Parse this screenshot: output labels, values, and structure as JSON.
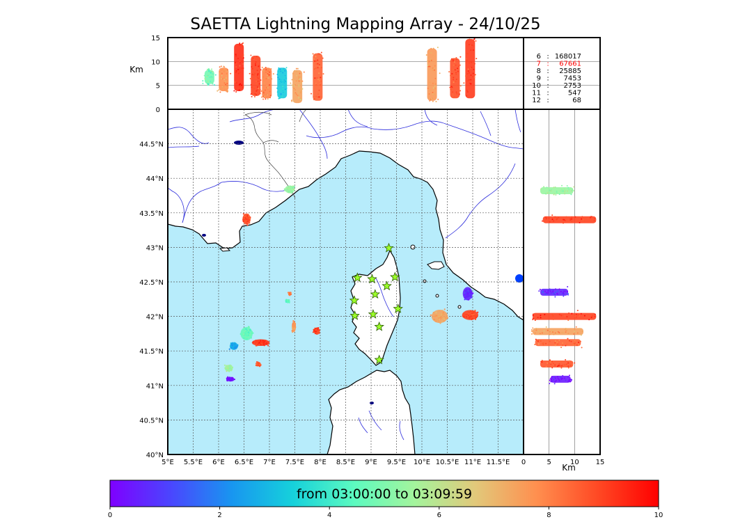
{
  "title": "SAETTA Lightning Mapping Array - 24/10/25",
  "colors": {
    "sea": "#b7ecfb",
    "land": "#ffffff",
    "coast": "#000000",
    "rivers": "#2b2bdc",
    "borders": "#444444",
    "grid": "#555555",
    "station_fill": "#9cff2a",
    "station_stroke": "#2a5a00",
    "highlight_text": "#ff0000"
  },
  "altitude_panel": {
    "ylabel": "Km",
    "yticks": [
      "15",
      "10",
      "5",
      "0"
    ],
    "reflines_km": [
      10,
      5
    ]
  },
  "side_panel": {
    "xlabel": "Km",
    "xticks": [
      "0",
      "5",
      "10",
      "15"
    ]
  },
  "station_counts": [
    {
      "stations": "6",
      "count": "168017",
      "highlight": false
    },
    {
      "stations": "7",
      "count": "67661",
      "highlight": true
    },
    {
      "stations": "8",
      "count": "25885",
      "highlight": false
    },
    {
      "stations": "9",
      "count": "7453",
      "highlight": false
    },
    {
      "stations": "10",
      "count": "2753",
      "highlight": false
    },
    {
      "stations": "11",
      "count": "547",
      "highlight": false
    },
    {
      "stations": "12",
      "count": "68",
      "highlight": false
    }
  ],
  "map": {
    "lon_range": [
      5,
      12
    ],
    "lat_range": [
      40,
      45
    ],
    "lon_ticks": [
      "5°E",
      "5.5°E",
      "6°E",
      "6.5°E",
      "7°E",
      "7.5°E",
      "8°E",
      "8.5°E",
      "9°E",
      "9.5°E",
      "10°E",
      "10.5°E",
      "11°E",
      "11.5°E"
    ],
    "lat_ticks": [
      "44.5°N",
      "44°N",
      "43.5°N",
      "43°N",
      "42.5°N",
      "42°N",
      "41.5°N",
      "41°N",
      "40.5°N",
      "40°N"
    ]
  },
  "colorbar": {
    "label": "from 03:00:00 to 03:09:59",
    "range_min": 0,
    "range_max": 10,
    "ticks": [
      "0",
      "2",
      "4",
      "6",
      "8",
      "10"
    ],
    "stops": [
      "#7f00ff",
      "#4a46fe",
      "#1896f0",
      "#16d1db",
      "#5cfac0",
      "#a4f49c",
      "#e2c87a",
      "#ff8f4f",
      "#ff4924",
      "#ff0000"
    ]
  },
  "stations": [
    {
      "lon": 9.35,
      "lat": 42.99
    },
    {
      "lon": 8.73,
      "lat": 42.56
    },
    {
      "lon": 9.02,
      "lat": 42.54
    },
    {
      "lon": 9.47,
      "lat": 42.57
    },
    {
      "lon": 9.31,
      "lat": 42.44
    },
    {
      "lon": 9.08,
      "lat": 42.32
    },
    {
      "lon": 8.67,
      "lat": 42.23
    },
    {
      "lon": 9.53,
      "lat": 42.11
    },
    {
      "lon": 9.04,
      "lat": 42.03
    },
    {
      "lon": 8.68,
      "lat": 42.01
    },
    {
      "lon": 9.16,
      "lat": 41.85
    },
    {
      "lon": 9.16,
      "lat": 41.37
    }
  ],
  "storm_cells": [
    {
      "lon": 6.55,
      "lat": 43.41,
      "rx": 0.1,
      "ry": 0.1,
      "t": 8.8
    },
    {
      "lon": 7.4,
      "lat": 43.84,
      "rx": 0.12,
      "ry": 0.07,
      "t": 5.4
    },
    {
      "lon": 10.35,
      "lat": 42.0,
      "rx": 0.2,
      "ry": 0.12,
      "t": 7.4
    },
    {
      "lon": 10.95,
      "lat": 42.02,
      "rx": 0.2,
      "ry": 0.09,
      "t": 9.0
    },
    {
      "lon": 10.9,
      "lat": 42.33,
      "rx": 0.12,
      "ry": 0.12,
      "t": 0.6
    },
    {
      "lon": 6.83,
      "lat": 41.62,
      "rx": 0.22,
      "ry": 0.06,
      "t": 9.2
    },
    {
      "lon": 6.55,
      "lat": 41.75,
      "rx": 0.15,
      "ry": 0.12,
      "t": 4.6
    },
    {
      "lon": 7.93,
      "lat": 41.79,
      "rx": 0.08,
      "ry": 0.06,
      "t": 9.0
    },
    {
      "lon": 7.48,
      "lat": 41.85,
      "rx": 0.05,
      "ry": 0.1,
      "t": 7.6
    },
    {
      "lon": 6.3,
      "lat": 41.57,
      "rx": 0.1,
      "ry": 0.07,
      "t": 2.5
    },
    {
      "lon": 6.78,
      "lat": 41.31,
      "rx": 0.06,
      "ry": 0.04,
      "t": 8.7
    },
    {
      "lon": 6.2,
      "lat": 41.25,
      "rx": 0.1,
      "ry": 0.06,
      "t": 5.5
    },
    {
      "lon": 6.23,
      "lat": 41.09,
      "rx": 0.1,
      "ry": 0.04,
      "t": 0.3
    },
    {
      "lon": 7.4,
      "lat": 42.33,
      "rx": 0.04,
      "ry": 0.03,
      "t": 8.0
    },
    {
      "lon": 7.35,
      "lat": 42.22,
      "rx": 0.05,
      "ry": 0.03,
      "t": 4.5
    }
  ],
  "altitude_cells": [
    {
      "lon": 5.82,
      "lo_km": 5.0,
      "hi_km": 8.5,
      "t": 4.8
    },
    {
      "lon": 6.1,
      "lo_km": 3.5,
      "hi_km": 9.0,
      "t": 7.8
    },
    {
      "lon": 6.4,
      "lo_km": 3.5,
      "hi_km": 14.0,
      "t": 9.3
    },
    {
      "lon": 6.73,
      "lo_km": 2.5,
      "hi_km": 11.5,
      "t": 9.0
    },
    {
      "lon": 6.95,
      "lo_km": 2.0,
      "hi_km": 9.0,
      "t": 8.0
    },
    {
      "lon": 7.25,
      "lo_km": 2.0,
      "hi_km": 9.0,
      "t": 3.2
    },
    {
      "lon": 7.55,
      "lo_km": 1.0,
      "hi_km": 8.5,
      "t": 7.4
    },
    {
      "lon": 7.95,
      "lo_km": 1.5,
      "hi_km": 12.0,
      "t": 8.5
    },
    {
      "lon": 10.2,
      "lo_km": 1.5,
      "hi_km": 13.0,
      "t": 7.6
    },
    {
      "lon": 10.65,
      "lo_km": 2.0,
      "hi_km": 11.0,
      "t": 8.8
    },
    {
      "lon": 10.95,
      "lo_km": 2.0,
      "hi_km": 15.0,
      "t": 9.1
    }
  ],
  "side_cells": [
    {
      "lat": 43.82,
      "lo_km": 3.0,
      "hi_km": 10.0,
      "t": 5.4
    },
    {
      "lat": 43.4,
      "lo_km": 3.5,
      "hi_km": 14.5,
      "t": 9.0
    },
    {
      "lat": 42.35,
      "lo_km": 3.0,
      "hi_km": 9.0,
      "t": 0.6
    },
    {
      "lat": 42.0,
      "lo_km": 1.5,
      "hi_km": 14.5,
      "t": 9.0
    },
    {
      "lat": 41.78,
      "lo_km": 1.5,
      "hi_km": 12.0,
      "t": 7.4
    },
    {
      "lat": 41.62,
      "lo_km": 2.0,
      "hi_km": 11.5,
      "t": 8.5
    },
    {
      "lat": 41.31,
      "lo_km": 3.0,
      "hi_km": 10.0,
      "t": 8.7
    },
    {
      "lat": 41.09,
      "lo_km": 5.0,
      "hi_km": 9.5,
      "t": 0.4
    }
  ]
}
